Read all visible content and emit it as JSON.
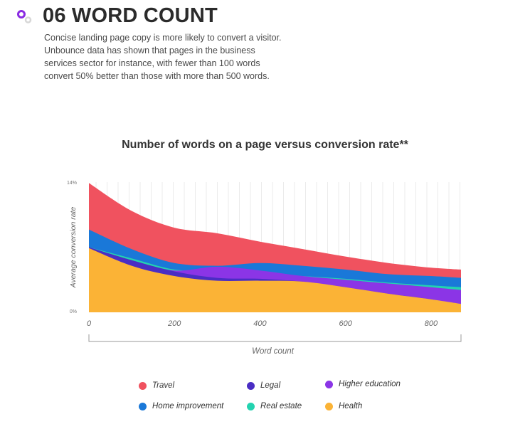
{
  "header": {
    "title": "06 WORD COUNT",
    "icon": "bubbles-icon",
    "icon_colors": [
      "#8a2be2",
      "#d7d7d7"
    ]
  },
  "intro": {
    "text": "Concise landing page copy is more likely to convert a visitor. Unbounce data has shown that pages in the business services sector for instance, with fewer than 100 words convert 50% better than those with more than 500 words."
  },
  "chart_data": {
    "type": "area",
    "title": "Number of words on a page versus conversion rate**",
    "xlabel": "Word count",
    "ylabel": "Average conversion rate",
    "x_ticks": [
      0,
      200,
      400,
      600,
      800
    ],
    "y_ticks": [
      "0%",
      "14%"
    ],
    "xlim": [
      0,
      870
    ],
    "ylim": [
      0,
      14
    ],
    "grid": "vertical",
    "legend_position": "bottom",
    "x": [
      0,
      100,
      200,
      300,
      400,
      500,
      600,
      700,
      800,
      870
    ],
    "series": [
      {
        "name": "Travel",
        "color": "#f0525f",
        "values": [
          13.9,
          10.9,
          9.1,
          8.5,
          7.6,
          6.8,
          6.0,
          5.3,
          4.8,
          4.6
        ]
      },
      {
        "name": "Home improvement",
        "color": "#1a78d8",
        "values": [
          8.9,
          6.8,
          5.3,
          5.0,
          5.3,
          5.0,
          4.6,
          4.1,
          3.9,
          3.7
        ]
      },
      {
        "name": "Real estate",
        "color": "#23d3b0",
        "values": [
          7.0,
          5.8,
          4.6,
          4.4,
          4.1,
          3.9,
          3.6,
          3.2,
          2.9,
          2.7
        ]
      },
      {
        "name": "Higher education",
        "color": "#8b35e6",
        "values": [
          7.0,
          5.6,
          4.5,
          4.9,
          4.5,
          3.9,
          3.5,
          3.1,
          2.7,
          2.4
        ]
      },
      {
        "name": "Legal",
        "color": "#4a2dc4",
        "values": [
          7.0,
          5.6,
          4.4,
          3.7,
          3.6,
          3.3,
          2.7,
          2.0,
          1.4,
          0.8
        ]
      },
      {
        "name": "Health",
        "color": "#fbb336",
        "values": [
          6.9,
          5.0,
          3.9,
          3.4,
          3.4,
          3.3,
          2.7,
          2.0,
          1.4,
          0.9
        ]
      }
    ],
    "draw_order": [
      "Travel",
      "Home improvement",
      "Real estate",
      "Higher education",
      "Legal",
      "Health"
    ]
  },
  "legend": [
    {
      "label": "Travel",
      "color": "#f0525f"
    },
    {
      "label": "Legal",
      "color": "#4a2dc4"
    },
    {
      "label": "Higher education",
      "color": "#8b35e6"
    },
    {
      "label": "Home improvement",
      "color": "#1a78d8"
    },
    {
      "label": "Real estate",
      "color": "#23d3b0"
    },
    {
      "label": "Health",
      "color": "#fbb336"
    }
  ]
}
